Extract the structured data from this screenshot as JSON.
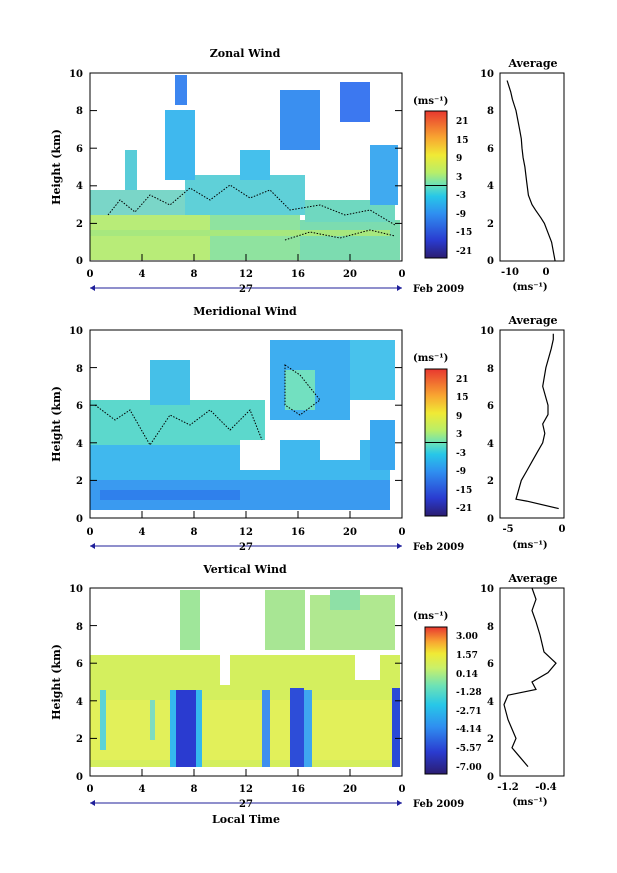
{
  "chart_data": [
    {
      "type": "heatmap",
      "title": "Zonal Wind",
      "ylabel": "Height (km)",
      "y_ticks": [
        "0",
        "2",
        "4",
        "6",
        "8",
        "10"
      ],
      "ylim": [
        0,
        10
      ],
      "x_ticks": [
        "0",
        "4",
        "8",
        "12",
        "16",
        "20",
        "0"
      ],
      "xlim": [
        0,
        24
      ],
      "day_label": "27",
      "date_label": "Feb 2009",
      "colorbar_unit": "(ms⁻¹)",
      "colorbar_labels": [
        "21",
        "15",
        "9",
        "3",
        "-3",
        "-9",
        "-15",
        "-21"
      ],
      "colorbar_range": [
        -24,
        24
      ],
      "colorbar_zero_line": true
    },
    {
      "type": "line",
      "title": "Average",
      "xlabel": "(ms⁻¹)",
      "x_ticks": [
        "-10",
        "0"
      ],
      "xlim": [
        -13,
        5
      ],
      "y_ticks": [
        "0",
        "2",
        "4",
        "6",
        "8",
        "10"
      ],
      "ylim": [
        0,
        10
      ],
      "x": [
        2.5,
        1.5,
        0.5,
        -0.5,
        -1.5,
        -3.0,
        -4.0,
        -5.0,
        -5.5,
        -6.0,
        -6.5,
        -6.8,
        -7.0,
        -7.5,
        -8.0,
        -8.5,
        -9.0,
        -9.5,
        -10.0,
        -10.5,
        -11.0
      ],
      "y": [
        0.0,
        1.0,
        1.5,
        2.0,
        2.3,
        2.7,
        3.0,
        3.5,
        4.2,
        5.0,
        5.5,
        6.0,
        6.5,
        7.0,
        7.5,
        8.0,
        8.3,
        8.6,
        9.0,
        9.3,
        9.6
      ]
    },
    {
      "type": "heatmap",
      "title": "Meridional Wind",
      "ylabel": "Height (km)",
      "y_ticks": [
        "0",
        "2",
        "4",
        "6",
        "8",
        "10"
      ],
      "ylim": [
        0,
        10
      ],
      "x_ticks": [
        "0",
        "4",
        "8",
        "12",
        "16",
        "20",
        "0"
      ],
      "xlim": [
        0,
        24
      ],
      "day_label": "27",
      "date_label": "Feb 2009",
      "colorbar_unit": "(ms⁻¹)",
      "colorbar_labels": [
        "21",
        "15",
        "9",
        "3",
        "-3",
        "-9",
        "-15",
        "-21"
      ],
      "colorbar_range": [
        -24,
        24
      ],
      "colorbar_zero_line": true
    },
    {
      "type": "line",
      "title": "Average",
      "xlabel": "(ms⁻¹)",
      "x_ticks": [
        "-5",
        "0"
      ],
      "xlim": [
        -6,
        0
      ],
      "y_ticks": [
        "0",
        "2",
        "4",
        "6",
        "8",
        "10"
      ],
      "ylim": [
        0,
        10
      ],
      "x": [
        -0.5,
        -3.5,
        -4.5,
        -4.0,
        -3.5,
        -3.0,
        -2.5,
        -2.0,
        -1.8,
        -2.0,
        -1.5,
        -1.5,
        -2.0,
        -1.7,
        -1.2,
        -1.0,
        -1.0
      ],
      "y": [
        0.5,
        0.9,
        1.0,
        2.0,
        2.5,
        3.0,
        3.5,
        4.0,
        4.5,
        5.0,
        5.5,
        6.0,
        7.0,
        8.0,
        9.0,
        9.5,
        9.8
      ]
    },
    {
      "type": "heatmap",
      "title": "Vertical Wind",
      "ylabel": "Height (km)",
      "xlabel": "Local Time",
      "y_ticks": [
        "0",
        "2",
        "4",
        "6",
        "8",
        "10"
      ],
      "ylim": [
        0,
        10
      ],
      "x_ticks": [
        "0",
        "4",
        "8",
        "12",
        "16",
        "20",
        "0"
      ],
      "xlim": [
        0,
        24
      ],
      "day_label": "27",
      "date_label": "Feb 2009",
      "colorbar_unit": "(ms⁻¹)",
      "colorbar_labels": [
        "3.00",
        "1.57",
        "0.14",
        "-1.28",
        "-2.71",
        "-4.14",
        "-5.57",
        "-7.00"
      ],
      "colorbar_range": [
        -7.0,
        3.0
      ],
      "colorbar_zero_line": false
    },
    {
      "type": "line",
      "title": "Average",
      "xlabel": "(ms⁻¹)",
      "x_ticks": [
        "-1.2",
        "-0.4"
      ],
      "xlim": [
        -1.4,
        0.2
      ],
      "y_ticks": [
        "0",
        "2",
        "4",
        "6",
        "8",
        "10"
      ],
      "ylim": [
        0,
        10
      ],
      "x": [
        -0.7,
        -0.9,
        -1.1,
        -1.0,
        -1.1,
        -1.2,
        -1.3,
        -1.2,
        -0.5,
        -0.6,
        -0.2,
        0.0,
        -0.3,
        -0.4,
        -0.5,
        -0.6,
        -0.5,
        -0.6
      ],
      "y": [
        0.5,
        1.0,
        1.5,
        2.0,
        2.5,
        3.0,
        3.8,
        4.3,
        4.6,
        5.0,
        5.5,
        6.0,
        6.6,
        7.5,
        8.2,
        8.8,
        9.4,
        10.0
      ]
    }
  ]
}
